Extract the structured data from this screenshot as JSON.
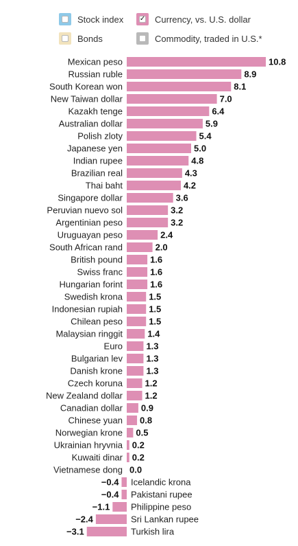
{
  "legend": {
    "items": [
      {
        "label": "Stock index",
        "color": "#8ec9e8",
        "checked": false
      },
      {
        "label": "Currency, vs. U.S. dollar",
        "color": "#de8fb4",
        "checked": true
      },
      {
        "label": "Bonds",
        "color": "#f2e3bd",
        "checked": false
      },
      {
        "label": "Commodity, traded in U.S.*",
        "color": "#b9b9b9",
        "checked": false
      }
    ]
  },
  "chart_data": {
    "type": "bar",
    "orientation": "horizontal",
    "bar_color": "#de8fb4",
    "categories": [
      "Mexican peso",
      "Russian ruble",
      "South Korean won",
      "New Taiwan dollar",
      "Kazakh tenge",
      "Australian dollar",
      "Polish zloty",
      "Japanese yen",
      "Indian rupee",
      "Brazilian real",
      "Thai baht",
      "Singapore dollar",
      "Peruvian nuevo sol",
      "Argentinian peso",
      "Uruguayan peso",
      "South African rand",
      "British pound",
      "Swiss franc",
      "Hungarian forint",
      "Swedish krona",
      "Indonesian rupiah",
      "Chilean peso",
      "Malaysian ringgit",
      "Euro",
      "Bulgarian lev",
      "Danish krone",
      "Czech koruna",
      "New Zealand dollar",
      "Canadian dollar",
      "Chinese yuan",
      "Norwegian krone",
      "Ukrainian hryvnia",
      "Kuwaiti dinar",
      "Vietnamese dong",
      "Icelandic krona",
      "Pakistani rupee",
      "Philippine peso",
      "Sri Lankan rupee",
      "Turkish lira"
    ],
    "values": [
      10.8,
      8.9,
      8.1,
      7.0,
      6.4,
      5.9,
      5.4,
      5.0,
      4.8,
      4.3,
      4.2,
      3.6,
      3.2,
      3.2,
      2.4,
      2.0,
      1.6,
      1.6,
      1.6,
      1.5,
      1.5,
      1.5,
      1.4,
      1.3,
      1.3,
      1.3,
      1.2,
      1.2,
      0.9,
      0.8,
      0.5,
      0.2,
      0.2,
      0.0,
      -0.4,
      -0.4,
      -1.1,
      -2.4,
      -3.1
    ],
    "value_labels": [
      "10.8",
      "8.9",
      "8.1",
      "7.0",
      "6.4",
      "5.9",
      "5.4",
      "5.0",
      "4.8",
      "4.3",
      "4.2",
      "3.6",
      "3.2",
      "3.2",
      "2.4",
      "2.0",
      "1.6",
      "1.6",
      "1.6",
      "1.5",
      "1.5",
      "1.5",
      "1.4",
      "1.3",
      "1.3",
      "1.3",
      "1.2",
      "1.2",
      "0.9",
      "0.8",
      "0.5",
      "0.2",
      "0.2",
      "0.0",
      "−0.4",
      "−0.4",
      "−1.1",
      "−2.4",
      "−3.1"
    ],
    "xlim": [
      -3.1,
      10.8
    ],
    "title": "",
    "xlabel": "",
    "ylabel": "",
    "grid": false,
    "legend_position": "top"
  }
}
